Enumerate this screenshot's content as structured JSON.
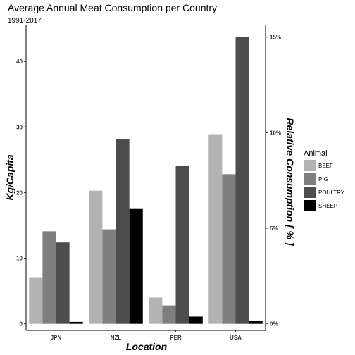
{
  "chart_data": {
    "type": "bar",
    "title": "Average Annual Meat Consumption per Country",
    "subtitle": "1991-2017",
    "xlabel": "Location",
    "ylabel": "Kg/Capita",
    "y2label": "Relative Consumption [ % ]",
    "categories": [
      "JPN",
      "NZL",
      "PER",
      "USA"
    ],
    "series": [
      {
        "name": "BEEF",
        "color": "#b3b3b3",
        "values": [
          7.1,
          20.3,
          4.0,
          28.9
        ]
      },
      {
        "name": "PIG",
        "color": "#7f7f7f",
        "values": [
          14.1,
          14.4,
          2.8,
          22.8
        ]
      },
      {
        "name": "POULTRY",
        "color": "#4d4d4d",
        "values": [
          12.4,
          28.2,
          24.1,
          43.7
        ]
      },
      {
        "name": "SHEEP",
        "color": "#000000",
        "values": [
          0.3,
          17.5,
          1.1,
          0.4
        ]
      }
    ],
    "ylim": [
      -1,
      45.6
    ],
    "yticks": [
      0,
      10,
      20,
      30,
      40
    ],
    "y2": {
      "ticks": [
        0,
        5,
        10,
        15
      ],
      "tick_labels": [
        "0%",
        "5%",
        "10%",
        "15%"
      ],
      "max_value_at": 15
    },
    "legend": {
      "title": "Animal",
      "position": "right"
    },
    "grid": false
  }
}
